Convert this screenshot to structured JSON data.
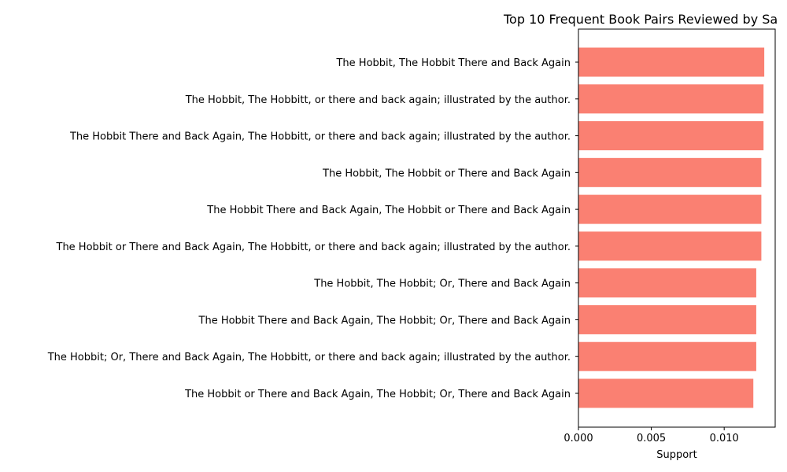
{
  "chart_data": {
    "type": "bar",
    "orientation": "horizontal",
    "title": "Top 10 Frequent Book Pairs Reviewed by Sa",
    "xlabel": "Support",
    "ylabel": "",
    "xlim": [
      0,
      0.0135
    ],
    "x_ticks": [
      {
        "value": 0.0,
        "label": "0.000"
      },
      {
        "value": 0.005,
        "label": "0.005"
      },
      {
        "value": 0.01,
        "label": "0.010"
      }
    ],
    "bar_color": "#fa8072",
    "categories": [
      "The Hobbit, The Hobbit There and Back Again",
      "The Hobbit, The Hobbitt, or there and back again; illustrated by the author.",
      "The Hobbit There and Back Again, The Hobbitt, or there and back again; illustrated by the author.",
      "The Hobbit, The Hobbit or There and Back Again",
      "The Hobbit There and Back Again, The Hobbit or There and Back Again",
      "The Hobbit or There and Back Again, The Hobbitt, or there and back again; illustrated by the author.",
      "The Hobbit, The Hobbit; Or, There and Back Again",
      "The Hobbit There and Back Again, The Hobbit; Or, There and Back Again",
      "The Hobbit; Or, There and Back Again, The Hobbitt, or there and back again; illustrated by the author.",
      "The Hobbit or There and Back Again, The Hobbit; Or, There and Back Again"
    ],
    "values": [
      0.01275,
      0.0127,
      0.0127,
      0.01255,
      0.01255,
      0.01255,
      0.0122,
      0.0122,
      0.0122,
      0.012
    ],
    "grid": false,
    "legend": "none"
  }
}
